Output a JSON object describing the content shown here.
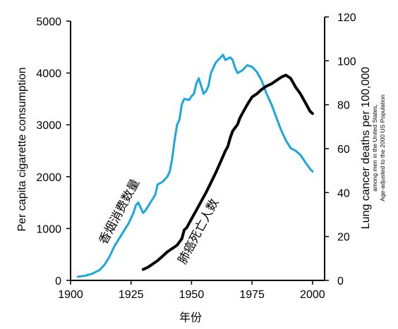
{
  "chart_data": {
    "type": "line",
    "xlabel": "年份",
    "ylabel_left": "Per capita cigarette consumption",
    "ylabel_right": "Lung cancer deaths per 100,000",
    "ylabel_right_sub1": "among men in the United States,",
    "ylabel_right_sub2": "Age-adjusted to the 2000 US Population",
    "xlim": [
      1900,
      2005
    ],
    "ylim_left": [
      0,
      5000
    ],
    "ylim_right": [
      0,
      120
    ],
    "x_ticks": [
      1900,
      1925,
      1950,
      1975,
      2000
    ],
    "y_ticks_left": [
      0,
      1000,
      2000,
      3000,
      4000,
      5000
    ],
    "y_ticks_right": [
      0,
      20,
      40,
      60,
      80,
      100,
      120
    ],
    "grid": false,
    "series": [
      {
        "name": "香烟消费数量",
        "axis": "left",
        "color": "#1aa7e0",
        "points": [
          [
            1903,
            70
          ],
          [
            1906,
            90
          ],
          [
            1909,
            130
          ],
          [
            1912,
            200
          ],
          [
            1914,
            300
          ],
          [
            1916,
            450
          ],
          [
            1918,
            650
          ],
          [
            1920,
            800
          ],
          [
            1922,
            950
          ],
          [
            1924,
            1100
          ],
          [
            1926,
            1300
          ],
          [
            1927,
            1450
          ],
          [
            1928,
            1500
          ],
          [
            1929,
            1400
          ],
          [
            1930,
            1300
          ],
          [
            1931,
            1350
          ],
          [
            1933,
            1500
          ],
          [
            1935,
            1650
          ],
          [
            1936,
            1850
          ],
          [
            1938,
            1900
          ],
          [
            1940,
            2000
          ],
          [
            1941,
            2100
          ],
          [
            1942,
            2350
          ],
          [
            1943,
            2700
          ],
          [
            1944,
            3000
          ],
          [
            1945,
            3100
          ],
          [
            1946,
            3400
          ],
          [
            1947,
            3500
          ],
          [
            1949,
            3480
          ],
          [
            1950,
            3550
          ],
          [
            1951,
            3600
          ],
          [
            1952,
            3800
          ],
          [
            1953,
            3900
          ],
          [
            1954,
            3750
          ],
          [
            1955,
            3600
          ],
          [
            1956,
            3650
          ],
          [
            1957,
            3750
          ],
          [
            1958,
            4000
          ],
          [
            1960,
            4200
          ],
          [
            1962,
            4300
          ],
          [
            1963,
            4350
          ],
          [
            1964,
            4250
          ],
          [
            1966,
            4300
          ],
          [
            1967,
            4250
          ],
          [
            1968,
            4100
          ],
          [
            1969,
            4000
          ],
          [
            1971,
            4050
          ],
          [
            1973,
            4150
          ],
          [
            1975,
            4120
          ],
          [
            1977,
            4020
          ],
          [
            1979,
            3850
          ],
          [
            1981,
            3600
          ],
          [
            1983,
            3400
          ],
          [
            1985,
            3150
          ],
          [
            1987,
            2900
          ],
          [
            1989,
            2700
          ],
          [
            1991,
            2550
          ],
          [
            1993,
            2500
          ],
          [
            1995,
            2420
          ],
          [
            1997,
            2280
          ],
          [
            1999,
            2150
          ],
          [
            2000,
            2100
          ]
        ]
      },
      {
        "name": "肺癌死亡人数",
        "axis": "right",
        "color": "#000000",
        "points": [
          [
            1930,
            5
          ],
          [
            1932,
            6
          ],
          [
            1934,
            7.5
          ],
          [
            1936,
            9
          ],
          [
            1938,
            11
          ],
          [
            1940,
            13
          ],
          [
            1942,
            14.5
          ],
          [
            1944,
            16
          ],
          [
            1946,
            19
          ],
          [
            1947,
            23
          ],
          [
            1948,
            24
          ],
          [
            1950,
            28
          ],
          [
            1952,
            32
          ],
          [
            1954,
            36
          ],
          [
            1956,
            40
          ],
          [
            1958,
            44.5
          ],
          [
            1960,
            49
          ],
          [
            1962,
            54
          ],
          [
            1964,
            59
          ],
          [
            1965,
            61
          ],
          [
            1966,
            65
          ],
          [
            1967,
            68
          ],
          [
            1969,
            71
          ],
          [
            1970,
            74
          ],
          [
            1971,
            76
          ],
          [
            1973,
            80
          ],
          [
            1975,
            83.5
          ],
          [
            1977,
            85
          ],
          [
            1979,
            87
          ],
          [
            1981,
            88.5
          ],
          [
            1983,
            89.5
          ],
          [
            1985,
            91
          ],
          [
            1987,
            92.5
          ],
          [
            1989,
            93.5
          ],
          [
            1991,
            92
          ],
          [
            1993,
            88
          ],
          [
            1995,
            85
          ],
          [
            1997,
            81
          ],
          [
            1999,
            77
          ],
          [
            2000,
            76
          ]
        ]
      }
    ]
  }
}
